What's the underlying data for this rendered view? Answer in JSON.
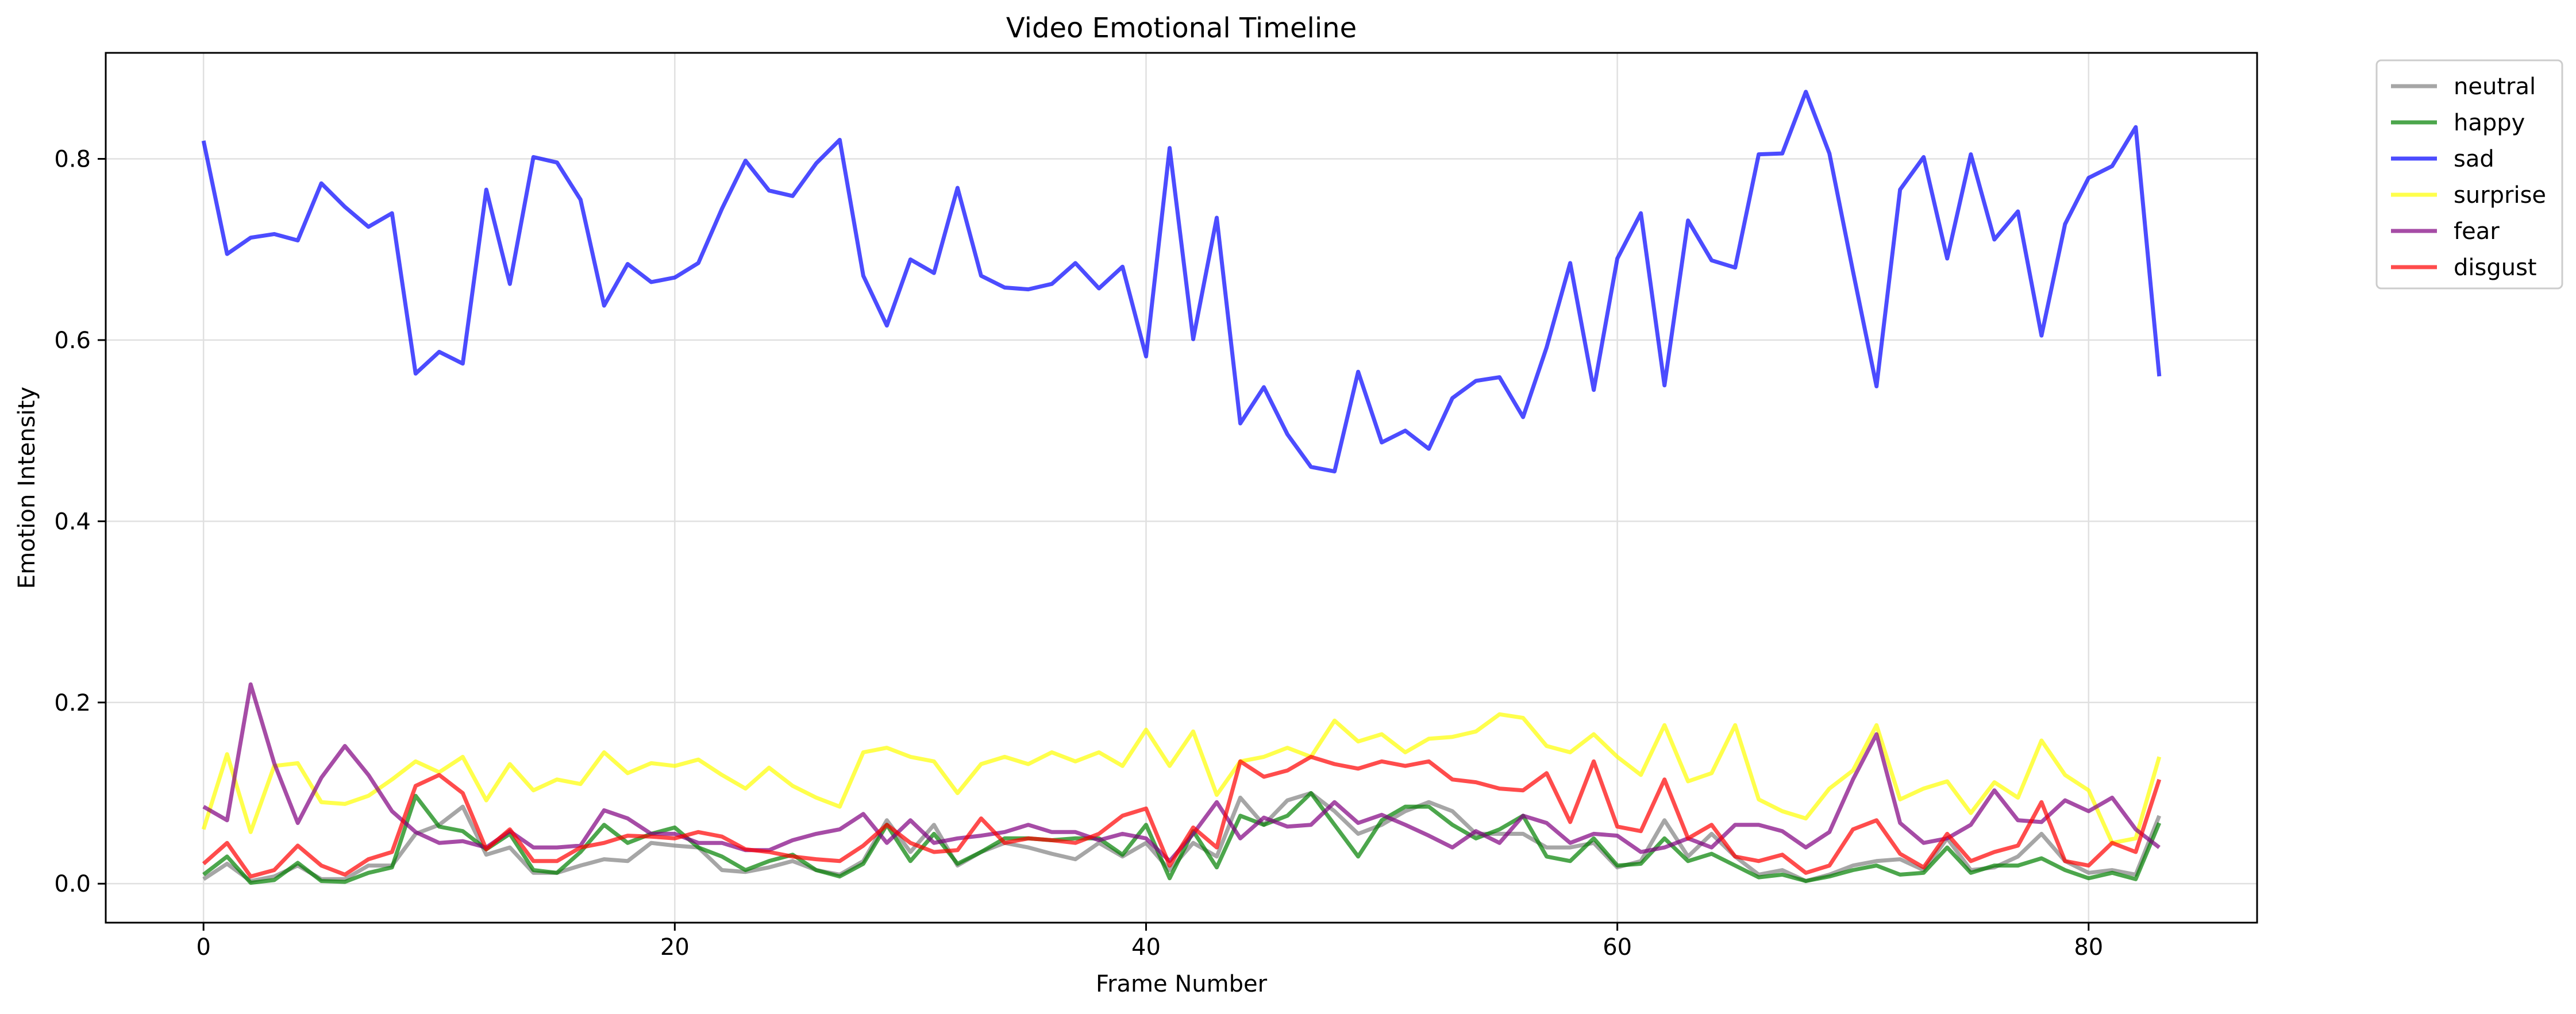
{
  "chart_data": {
    "type": "line",
    "title": "Video Emotional Timeline",
    "xlabel": "Frame Number",
    "ylabel": "Emotion Intensity",
    "xlim": [
      -4.15,
      87.15
    ],
    "ylim": [
      -0.043,
      0.917
    ],
    "xticks": [
      0,
      20,
      40,
      60,
      80
    ],
    "yticks": [
      0.0,
      0.2,
      0.4,
      0.6,
      0.8
    ],
    "grid": true,
    "legend_position": "upper-right-outside",
    "x": [
      0,
      1,
      2,
      3,
      4,
      5,
      6,
      7,
      8,
      9,
      10,
      11,
      12,
      13,
      14,
      15,
      16,
      17,
      18,
      19,
      20,
      21,
      22,
      23,
      24,
      25,
      26,
      27,
      28,
      29,
      30,
      31,
      32,
      33,
      34,
      35,
      36,
      37,
      38,
      39,
      40,
      41,
      42,
      43,
      44,
      45,
      46,
      47,
      48,
      49,
      50,
      51,
      52,
      53,
      54,
      55,
      56,
      57,
      58,
      59,
      60,
      61,
      62,
      63,
      64,
      65,
      66,
      67,
      68,
      69,
      70,
      71,
      72,
      73,
      74,
      75,
      76,
      77,
      78,
      79,
      80,
      81,
      82,
      83
    ],
    "series": [
      {
        "name": "neutral",
        "color": "#808080",
        "values": [
          0.005,
          0.022,
          0.003,
          0.008,
          0.02,
          0.005,
          0.005,
          0.02,
          0.02,
          0.055,
          0.065,
          0.085,
          0.032,
          0.04,
          0.012,
          0.012,
          0.02,
          0.027,
          0.025,
          0.045,
          0.042,
          0.04,
          0.015,
          0.013,
          0.018,
          0.025,
          0.015,
          0.01,
          0.025,
          0.07,
          0.035,
          0.065,
          0.02,
          0.035,
          0.045,
          0.04,
          0.033,
          0.027,
          0.045,
          0.03,
          0.045,
          0.015,
          0.045,
          0.03,
          0.095,
          0.065,
          0.092,
          0.1,
          0.08,
          0.055,
          0.065,
          0.08,
          0.09,
          0.08,
          0.055,
          0.055,
          0.055,
          0.04,
          0.04,
          0.045,
          0.018,
          0.025,
          0.07,
          0.03,
          0.055,
          0.03,
          0.01,
          0.015,
          0.003,
          0.01,
          0.02,
          0.025,
          0.027,
          0.015,
          0.05,
          0.015,
          0.018,
          0.03,
          0.055,
          0.025,
          0.012,
          0.015,
          0.01,
          0.075
        ]
      },
      {
        "name": "happy",
        "color": "#008000",
        "values": [
          0.01,
          0.03,
          0.001,
          0.004,
          0.023,
          0.003,
          0.002,
          0.012,
          0.018,
          0.097,
          0.063,
          0.058,
          0.038,
          0.055,
          0.015,
          0.012,
          0.035,
          0.065,
          0.045,
          0.055,
          0.062,
          0.04,
          0.03,
          0.015,
          0.025,
          0.032,
          0.015,
          0.008,
          0.022,
          0.065,
          0.025,
          0.055,
          0.022,
          0.035,
          0.05,
          0.05,
          0.048,
          0.05,
          0.05,
          0.032,
          0.065,
          0.006,
          0.058,
          0.018,
          0.075,
          0.065,
          0.075,
          0.1,
          0.065,
          0.03,
          0.07,
          0.085,
          0.085,
          0.065,
          0.05,
          0.06,
          0.075,
          0.03,
          0.025,
          0.05,
          0.02,
          0.022,
          0.05,
          0.025,
          0.033,
          0.02,
          0.007,
          0.01,
          0.003,
          0.008,
          0.015,
          0.02,
          0.01,
          0.012,
          0.04,
          0.012,
          0.02,
          0.02,
          0.028,
          0.015,
          0.006,
          0.012,
          0.005,
          0.067
        ]
      },
      {
        "name": "sad",
        "color": "#0000FF",
        "values": [
          0.82,
          0.695,
          0.713,
          0.717,
          0.71,
          0.773,
          0.747,
          0.725,
          0.74,
          0.563,
          0.587,
          0.574,
          0.766,
          0.662,
          0.802,
          0.796,
          0.755,
          0.638,
          0.684,
          0.664,
          0.669,
          0.685,
          0.745,
          0.798,
          0.765,
          0.759,
          0.795,
          0.821,
          0.671,
          0.616,
          0.689,
          0.674,
          0.768,
          0.671,
          0.658,
          0.656,
          0.662,
          0.685,
          0.657,
          0.681,
          0.582,
          0.812,
          0.601,
          0.735,
          0.508,
          0.548,
          0.496,
          0.46,
          0.455,
          0.565,
          0.487,
          0.5,
          0.48,
          0.536,
          0.555,
          0.559,
          0.515,
          0.592,
          0.685,
          0.545,
          0.69,
          0.74,
          0.55,
          0.732,
          0.688,
          0.68,
          0.805,
          0.806,
          0.874,
          0.806,
          0.676,
          0.549,
          0.766,
          0.802,
          0.69,
          0.805,
          0.711,
          0.742,
          0.605,
          0.728,
          0.779,
          0.792,
          0.835,
          0.56
        ]
      },
      {
        "name": "surprise",
        "color": "#FFFF00",
        "values": [
          0.06,
          0.143,
          0.057,
          0.13,
          0.133,
          0.09,
          0.088,
          0.097,
          0.115,
          0.135,
          0.123,
          0.14,
          0.092,
          0.132,
          0.103,
          0.115,
          0.11,
          0.145,
          0.122,
          0.133,
          0.13,
          0.137,
          0.12,
          0.105,
          0.128,
          0.108,
          0.095,
          0.085,
          0.145,
          0.15,
          0.14,
          0.135,
          0.1,
          0.132,
          0.14,
          0.132,
          0.145,
          0.135,
          0.145,
          0.13,
          0.17,
          0.13,
          0.168,
          0.098,
          0.135,
          0.14,
          0.15,
          0.14,
          0.18,
          0.157,
          0.165,
          0.145,
          0.16,
          0.162,
          0.168,
          0.187,
          0.183,
          0.152,
          0.145,
          0.165,
          0.14,
          0.12,
          0.175,
          0.113,
          0.122,
          0.175,
          0.093,
          0.08,
          0.072,
          0.105,
          0.125,
          0.175,
          0.093,
          0.105,
          0.113,
          0.078,
          0.112,
          0.095,
          0.158,
          0.12,
          0.103,
          0.045,
          0.05,
          0.14
        ]
      },
      {
        "name": "fear",
        "color": "#800080",
        "values": [
          0.085,
          0.07,
          0.22,
          0.133,
          0.067,
          0.117,
          0.152,
          0.12,
          0.08,
          0.057,
          0.045,
          0.047,
          0.04,
          0.058,
          0.04,
          0.04,
          0.042,
          0.081,
          0.072,
          0.055,
          0.055,
          0.045,
          0.045,
          0.037,
          0.037,
          0.048,
          0.055,
          0.06,
          0.077,
          0.045,
          0.07,
          0.045,
          0.05,
          0.053,
          0.057,
          0.065,
          0.057,
          0.057,
          0.048,
          0.055,
          0.05,
          0.025,
          0.055,
          0.09,
          0.05,
          0.073,
          0.063,
          0.065,
          0.09,
          0.067,
          0.076,
          0.065,
          0.053,
          0.04,
          0.058,
          0.045,
          0.075,
          0.067,
          0.045,
          0.055,
          0.053,
          0.035,
          0.04,
          0.05,
          0.04,
          0.065,
          0.065,
          0.058,
          0.04,
          0.057,
          0.115,
          0.165,
          0.067,
          0.045,
          0.05,
          0.065,
          0.103,
          0.07,
          0.068,
          0.092,
          0.08,
          0.095,
          0.06,
          0.04
        ]
      },
      {
        "name": "disgust",
        "color": "#FF0000",
        "values": [
          0.022,
          0.045,
          0.008,
          0.015,
          0.042,
          0.02,
          0.01,
          0.027,
          0.035,
          0.108,
          0.12,
          0.1,
          0.038,
          0.06,
          0.025,
          0.025,
          0.04,
          0.045,
          0.053,
          0.052,
          0.05,
          0.057,
          0.052,
          0.038,
          0.035,
          0.03,
          0.027,
          0.025,
          0.042,
          0.065,
          0.045,
          0.035,
          0.037,
          0.072,
          0.045,
          0.05,
          0.048,
          0.045,
          0.055,
          0.075,
          0.083,
          0.02,
          0.062,
          0.04,
          0.135,
          0.118,
          0.125,
          0.14,
          0.132,
          0.127,
          0.135,
          0.13,
          0.135,
          0.115,
          0.112,
          0.105,
          0.103,
          0.122,
          0.068,
          0.135,
          0.063,
          0.058,
          0.115,
          0.05,
          0.065,
          0.03,
          0.025,
          0.032,
          0.012,
          0.02,
          0.06,
          0.07,
          0.033,
          0.018,
          0.055,
          0.025,
          0.035,
          0.042,
          0.09,
          0.025,
          0.02,
          0.045,
          0.035,
          0.115
        ]
      }
    ]
  }
}
